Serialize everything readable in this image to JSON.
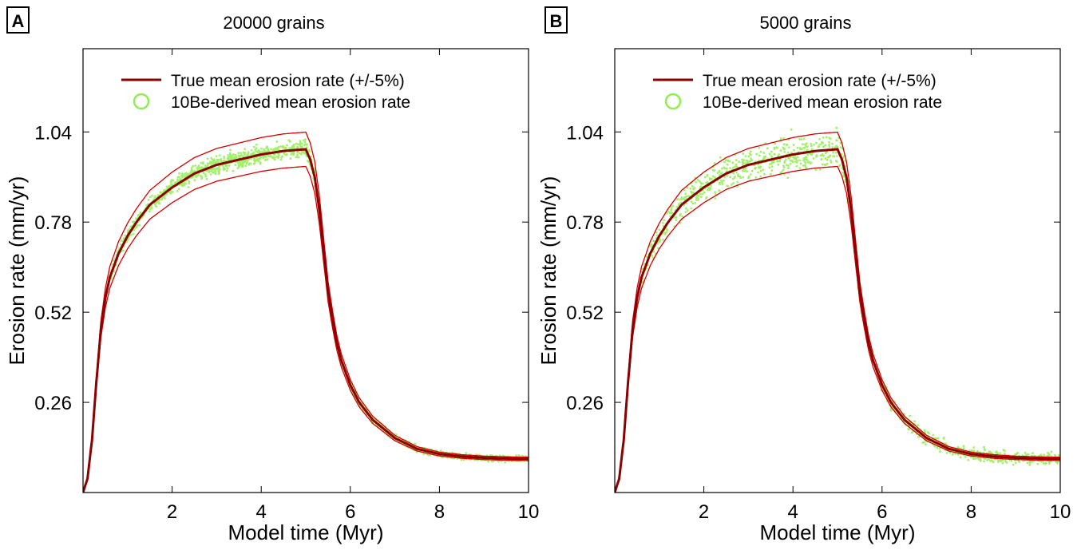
{
  "chart_data": [
    {
      "panel_label": "A",
      "type": "line",
      "title": "20000 grains",
      "xlabel": "Model time (Myr)",
      "ylabel": "Erosion rate (mm/yr)",
      "xlim": [
        0,
        10
      ],
      "ylim": [
        0,
        1.28
      ],
      "xticks": [
        2,
        4,
        6,
        8,
        10
      ],
      "yticks": [
        0.26,
        0.52,
        0.78,
        1.04
      ],
      "grid": false,
      "legend_position": "top-left",
      "series": [
        {
          "name": "True mean erosion rate (+/-5%)",
          "color": "#8b0000",
          "band_color": "#d40000",
          "band_fraction": 0.05,
          "x": [
            0,
            0.1,
            0.2,
            0.3,
            0.4,
            0.5,
            0.6,
            0.8,
            1.0,
            1.2,
            1.5,
            2.0,
            2.5,
            3.0,
            3.5,
            4.0,
            4.5,
            5.0,
            5.1,
            5.2,
            5.3,
            5.4,
            5.5,
            5.6,
            5.7,
            5.8,
            6.0,
            6.2,
            6.5,
            7.0,
            7.5,
            8.0,
            8.5,
            9.0,
            9.5,
            10.0
          ],
          "y": [
            0.0,
            0.04,
            0.15,
            0.32,
            0.47,
            0.56,
            0.62,
            0.69,
            0.74,
            0.78,
            0.83,
            0.88,
            0.92,
            0.945,
            0.96,
            0.975,
            0.985,
            0.99,
            0.96,
            0.91,
            0.82,
            0.7,
            0.58,
            0.5,
            0.43,
            0.38,
            0.31,
            0.26,
            0.21,
            0.157,
            0.126,
            0.111,
            0.104,
            0.1,
            0.098,
            0.097
          ]
        },
        {
          "name": "10Be-derived mean erosion rate",
          "color": "#90ee50",
          "marker": "circle",
          "scatter_spread": 0.012
        }
      ]
    },
    {
      "panel_label": "B",
      "type": "line",
      "title": "5000 grains",
      "xlabel": "Model time (Myr)",
      "ylabel": "Erosion rate (mm/yr)",
      "xlim": [
        0,
        10
      ],
      "ylim": [
        0,
        1.28
      ],
      "xticks": [
        2,
        4,
        6,
        8,
        10
      ],
      "yticks": [
        0.26,
        0.52,
        0.78,
        1.04
      ],
      "grid": false,
      "legend_position": "top-left",
      "series": [
        {
          "name": "True mean erosion rate (+/-5%)",
          "color": "#8b0000",
          "band_color": "#d40000",
          "band_fraction": 0.05,
          "x": [
            0,
            0.1,
            0.2,
            0.3,
            0.4,
            0.5,
            0.6,
            0.8,
            1.0,
            1.2,
            1.5,
            2.0,
            2.5,
            3.0,
            3.5,
            4.0,
            4.5,
            5.0,
            5.1,
            5.2,
            5.3,
            5.4,
            5.5,
            5.6,
            5.7,
            5.8,
            6.0,
            6.2,
            6.5,
            7.0,
            7.5,
            8.0,
            8.5,
            9.0,
            9.5,
            10.0
          ],
          "y": [
            0.0,
            0.04,
            0.15,
            0.32,
            0.47,
            0.56,
            0.62,
            0.69,
            0.74,
            0.78,
            0.83,
            0.88,
            0.92,
            0.945,
            0.96,
            0.975,
            0.985,
            0.99,
            0.96,
            0.91,
            0.82,
            0.7,
            0.58,
            0.5,
            0.43,
            0.38,
            0.31,
            0.26,
            0.21,
            0.157,
            0.126,
            0.111,
            0.104,
            0.1,
            0.098,
            0.097
          ]
        },
        {
          "name": "10Be-derived mean erosion rate",
          "color": "#90ee50",
          "marker": "circle",
          "scatter_spread": 0.025
        }
      ]
    }
  ]
}
